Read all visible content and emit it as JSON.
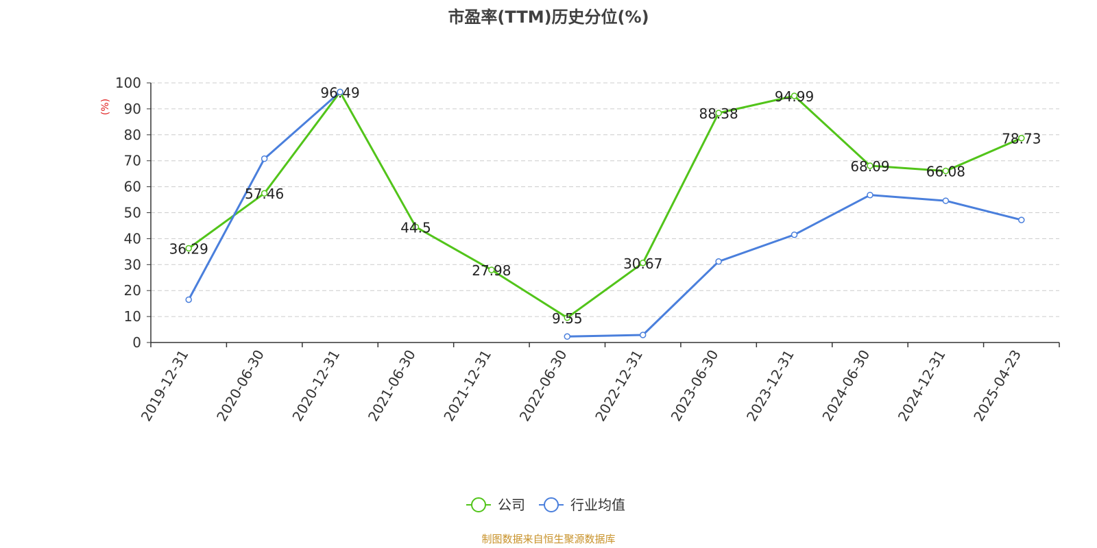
{
  "chart_data": {
    "type": "line",
    "title": "市盈率(TTM)历史分位(%)",
    "ylabel": "(%)",
    "ylim": [
      0,
      100
    ],
    "yticks": [
      0,
      10,
      20,
      30,
      40,
      50,
      60,
      70,
      80,
      90,
      100
    ],
    "grid": true,
    "categories": [
      "2019-12-31",
      "2020-06-30",
      "2020-12-31",
      "2021-06-30",
      "2021-12-31",
      "2022-06-30",
      "2022-12-31",
      "2023-06-30",
      "2023-12-31",
      "2024-06-30",
      "2024-12-31",
      "2025-04-23"
    ],
    "series": [
      {
        "name": "公司",
        "color": "#52c41a",
        "values": [
          36.29,
          57.46,
          96.49,
          44.5,
          27.98,
          9.55,
          30.67,
          88.38,
          94.99,
          68.09,
          66.08,
          78.73
        ],
        "show_labels": true
      },
      {
        "name": "行业均值",
        "color": "#4a7fdc",
        "values": [
          16.5,
          70.8,
          96.5,
          null,
          null,
          2.3,
          2.9,
          31.2,
          41.5,
          56.8,
          54.6,
          47.2
        ],
        "show_labels": false
      }
    ],
    "legend_position": "bottom-center"
  },
  "footer": {
    "source": "制图数据来自恒生聚源数据库",
    "source_color": "#c8922a"
  }
}
